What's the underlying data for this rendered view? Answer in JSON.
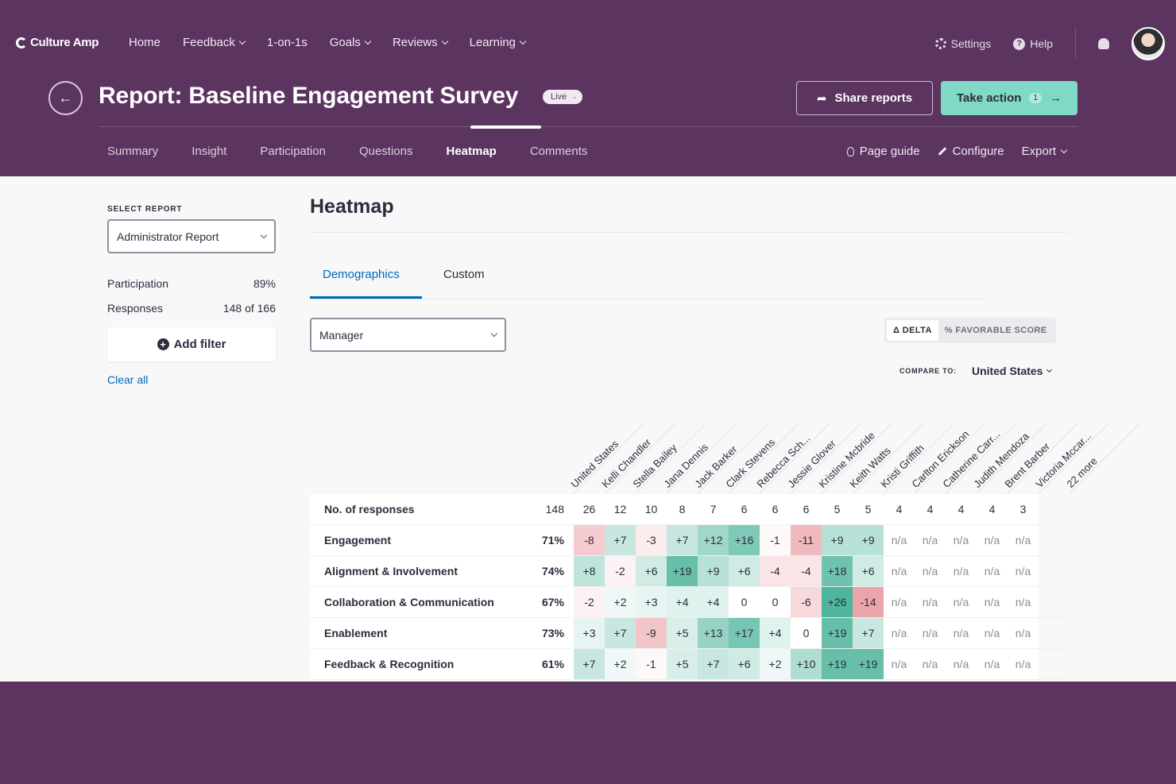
{
  "app": {
    "brand": "Culture Amp",
    "nav": [
      {
        "label": "Home",
        "dropdown": false
      },
      {
        "label": "Feedback",
        "dropdown": true
      },
      {
        "label": "1-on-1s",
        "dropdown": false
      },
      {
        "label": "Goals",
        "dropdown": true
      },
      {
        "label": "Reviews",
        "dropdown": true
      },
      {
        "label": "Learning",
        "dropdown": true
      }
    ],
    "settings_label": "Settings",
    "help_label": "Help"
  },
  "report": {
    "title": "Report: Baseline Engagement Survey",
    "status": "Live",
    "share_label": "Share reports",
    "action_label": "Take action",
    "action_count": "1",
    "tabs": [
      "Summary",
      "Insight",
      "Participation",
      "Questions",
      "Heatmap",
      "Comments"
    ],
    "active_tab": "Heatmap",
    "tools": [
      "Page guide",
      "Configure",
      "Export"
    ]
  },
  "sidebar": {
    "select_label": "SELECT REPORT",
    "selected_report": "Administrator Report",
    "participation_label": "Participation",
    "participation_value": "89%",
    "responses_label": "Responses",
    "responses_value": "148 of 166",
    "add_filter_label": "Add filter",
    "clear_label": "Clear all"
  },
  "heatmap": {
    "title": "Heatmap",
    "tabs": [
      "Demographics",
      "Custom"
    ],
    "active_tab": "Demographics",
    "group_select": "Manager",
    "toggle": [
      "Δ DELTA",
      "% FAVORABLE SCORE"
    ],
    "active_toggle": "Δ DELTA",
    "compare_label": "COMPARE TO:",
    "compare_value": "United States",
    "columns": [
      "United States",
      "Kelli Chandler",
      "Stella Bailey",
      "Jana Dennis",
      "Jack Barker",
      "Clark Stevens",
      "Rebecca Sch...",
      "Jessie Glover",
      "Kristine Mcbride",
      "Keith Watts",
      "Kristi Griffith",
      "Carlton Erickson",
      "Catherine Carr...",
      "Judith Mendoza",
      "Brent Barber",
      "Victoria Mccar...",
      "22 more"
    ],
    "rows": [
      {
        "label": "No. of responses",
        "total": "148",
        "cells": [
          "26",
          "12",
          "10",
          "8",
          "7",
          "6",
          "6",
          "6",
          "5",
          "5",
          "4",
          "4",
          "4",
          "4",
          "3"
        ],
        "is_count": true
      },
      {
        "label": "Engagement",
        "total": "71%",
        "cells": [
          "-8",
          "+7",
          "-3",
          "+7",
          "+12",
          "+16",
          "-1",
          "-11",
          "+9",
          "+9",
          "n/a",
          "n/a",
          "n/a",
          "n/a",
          "n/a"
        ]
      },
      {
        "label": "Alignment & Involvement",
        "total": "74%",
        "cells": [
          "+8",
          "-2",
          "+6",
          "+19",
          "+9",
          "+6",
          "-4",
          "-4",
          "+18",
          "+6",
          "n/a",
          "n/a",
          "n/a",
          "n/a",
          "n/a"
        ]
      },
      {
        "label": "Collaboration & Communication",
        "total": "67%",
        "cells": [
          "-2",
          "+2",
          "+3",
          "+4",
          "+4",
          "0",
          "0",
          "-6",
          "+26",
          "-14",
          "n/a",
          "n/a",
          "n/a",
          "n/a",
          "n/a"
        ]
      },
      {
        "label": "Enablement",
        "total": "73%",
        "cells": [
          "+3",
          "+7",
          "-9",
          "+5",
          "+13",
          "+17",
          "+4",
          "0",
          "+19",
          "+7",
          "n/a",
          "n/a",
          "n/a",
          "n/a",
          "n/a"
        ]
      },
      {
        "label": "Feedback & Recognition",
        "total": "61%",
        "cells": [
          "+7",
          "+2",
          "-1",
          "+5",
          "+7",
          "+6",
          "+2",
          "+10",
          "+19",
          "+19",
          "n/a",
          "n/a",
          "n/a",
          "n/a",
          "n/a"
        ]
      }
    ]
  },
  "colors": {
    "brand_purple": "#5c3460",
    "accent_teal": "#80d9c4",
    "link_blue": "#0168b3",
    "positive": "#4fb59c",
    "negative": "#e0727a"
  }
}
